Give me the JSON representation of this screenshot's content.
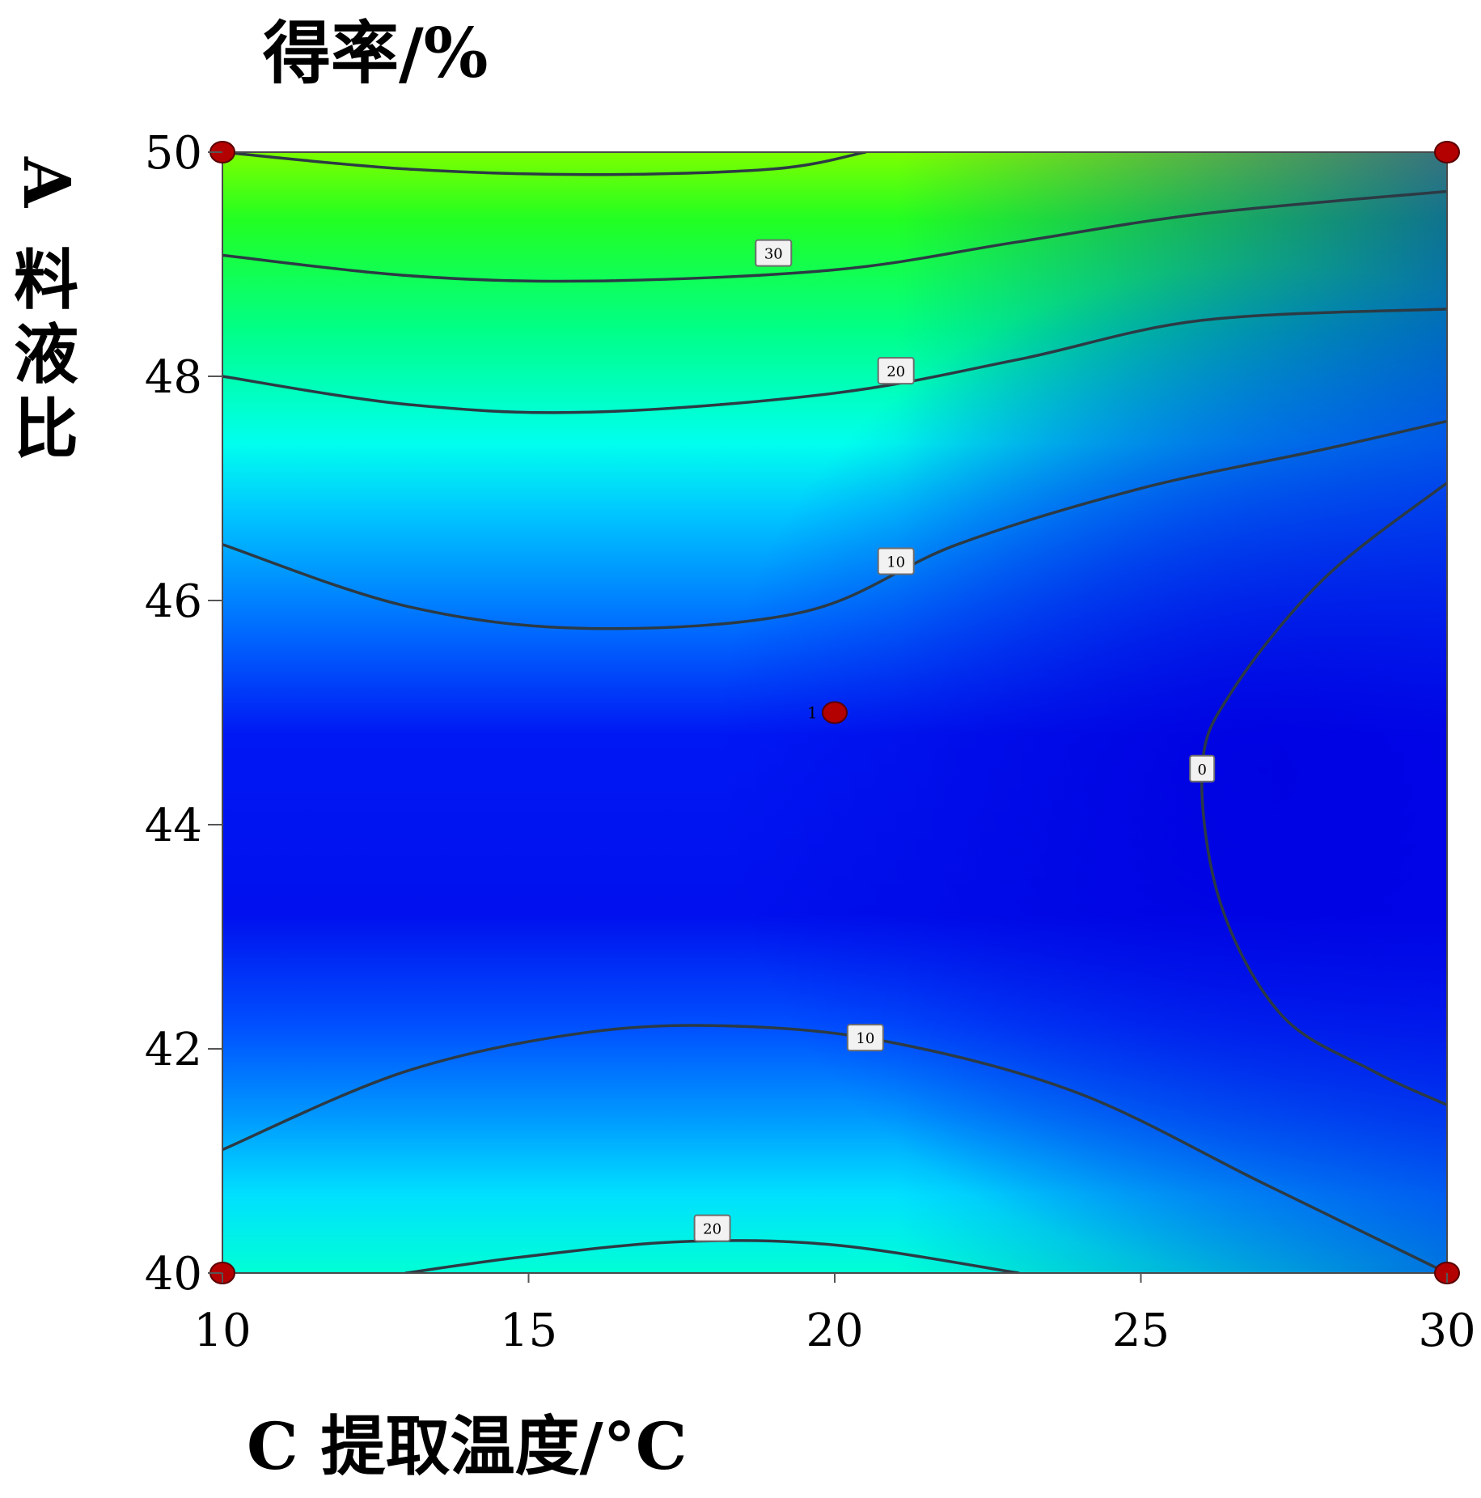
{
  "chart_data": {
    "type": "contour",
    "title": "得率/%",
    "xlabel": "C 提取温度/°C",
    "ylabel": "A 料液比",
    "xlim": [
      10,
      30
    ],
    "ylim": [
      40,
      50
    ],
    "x_ticks": [
      "10",
      "15",
      "20",
      "25",
      "30"
    ],
    "y_ticks": [
      "40",
      "42",
      "44",
      "46",
      "48",
      "50"
    ],
    "x_tick_values": [
      10,
      15,
      20,
      25,
      30
    ],
    "y_tick_values": [
      40,
      42,
      44,
      46,
      48,
      50
    ],
    "colormap": [
      "#0000e6",
      "#00ffff",
      "#00ff66",
      "#66ff00"
    ],
    "grid": false,
    "contours": [
      {
        "level": "30",
        "points": [
          [
            10,
            49.08
          ],
          [
            13,
            48.9
          ],
          [
            16,
            48.85
          ],
          [
            20,
            48.95
          ],
          [
            23,
            49.2
          ],
          [
            26,
            49.45
          ],
          [
            30,
            49.65
          ]
        ],
        "label_at": [
          19,
          49.1
        ]
      },
      {
        "level": "20",
        "points": [
          [
            10,
            48.0
          ],
          [
            13,
            47.75
          ],
          [
            16,
            47.68
          ],
          [
            20,
            47.85
          ],
          [
            23,
            48.15
          ],
          [
            26,
            48.5
          ],
          [
            30,
            48.6
          ]
        ],
        "label_at": [
          21,
          48.05
        ]
      },
      {
        "level": "10",
        "points": [
          [
            10,
            46.5
          ],
          [
            13,
            45.95
          ],
          [
            16,
            45.75
          ],
          [
            19.5,
            45.9
          ],
          [
            22,
            46.5
          ],
          [
            25,
            47.0
          ],
          [
            28,
            47.35
          ],
          [
            30,
            47.6
          ]
        ],
        "label_at": [
          21,
          46.35
        ]
      },
      {
        "level": "0",
        "points": [
          [
            30,
            47.05
          ],
          [
            28,
            46.2
          ],
          [
            26.5,
            45.2
          ],
          [
            26,
            44.5
          ],
          [
            26.3,
            43.3
          ],
          [
            27.3,
            42.3
          ],
          [
            28.8,
            41.8
          ],
          [
            30,
            41.5
          ]
        ],
        "label_at": [
          26,
          44.5
        ]
      },
      {
        "level": "10",
        "points": [
          [
            10,
            41.1
          ],
          [
            13,
            41.8
          ],
          [
            16,
            42.15
          ],
          [
            18.5,
            42.2
          ],
          [
            21,
            42.05
          ],
          [
            24,
            41.6
          ],
          [
            27,
            40.8
          ],
          [
            30,
            40.0
          ]
        ],
        "label_at": [
          20.5,
          42.1
        ]
      },
      {
        "level": "20",
        "points": [
          [
            13,
            40.0
          ],
          [
            15,
            40.15
          ],
          [
            17.5,
            40.28
          ],
          [
            20,
            40.25
          ],
          [
            23,
            40.0
          ]
        ],
        "label_at": [
          18,
          40.4
        ]
      },
      {
        "level": "30",
        "points": [
          [
            10,
            50.0
          ],
          [
            13,
            49.85
          ],
          [
            16,
            49.8
          ],
          [
            19,
            49.85
          ],
          [
            20.5,
            50.0
          ]
        ],
        "label_at": null
      }
    ],
    "design_points": [
      {
        "x": 10,
        "y": 40
      },
      {
        "x": 30,
        "y": 40
      },
      {
        "x": 10,
        "y": 50
      },
      {
        "x": 30,
        "y": 50
      },
      {
        "x": 20,
        "y": 45
      }
    ],
    "center_point_count": "1"
  }
}
